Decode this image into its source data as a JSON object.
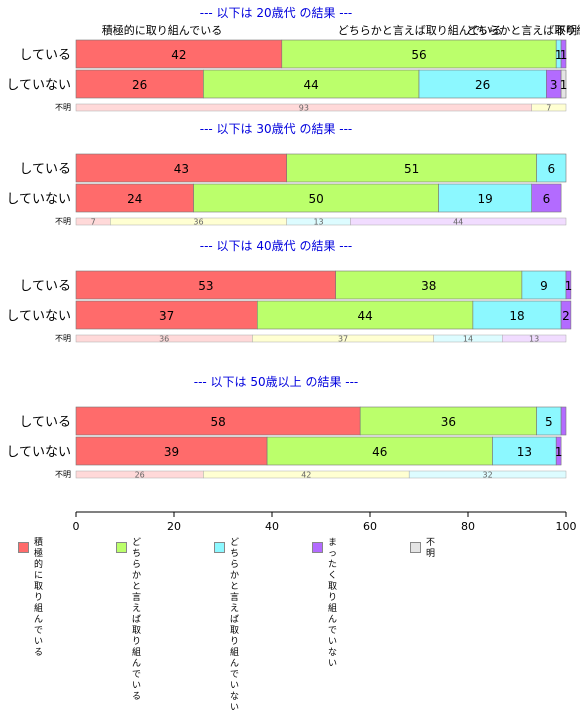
{
  "chart_data": {
    "type": "bar",
    "orientation": "horizontal-stacked-percent",
    "x_axis": {
      "min": 0,
      "max": 100,
      "ticks": [
        0,
        20,
        40,
        60,
        80,
        100
      ]
    },
    "legend_position": "bottom",
    "categories": [
      "積極的に\n取り組んでいる",
      "どちらかと言えば\n取り組んでいる",
      "どちらかと言えば\n取り組んでいない",
      "まったく\n取り組んでいない",
      "不明"
    ],
    "colors": [
      "#ff6b6b",
      "#bbff6b",
      "#8cf8ff",
      "#b36bff",
      "#e4e4e4"
    ],
    "unknown_colors": [
      "#ffd9d9",
      "#ffffd2",
      "#ddfcff",
      "#f1dcff",
      "#eeeeee"
    ],
    "top_labels": [
      "積極的に取り組んでいる",
      "どちらかと言えば取り組んでいる",
      "どちらかと言えば取り組んでいない",
      "不明"
    ],
    "groups": [
      {
        "title": "--- 以下は 20歳代 の結果 ---",
        "rows": [
          {
            "label": "している",
            "values": [
              42,
              56,
              1,
              1,
              0
            ],
            "labels": [
              "42",
              "56",
              "1",
              "1",
              ""
            ]
          },
          {
            "label": "していない",
            "values": [
              26,
              44,
              26,
              3,
              1
            ],
            "labels": [
              "26",
              "44",
              "26",
              "3",
              "1"
            ]
          }
        ],
        "unknown": {
          "label": "不明",
          "values": [
            93,
            7,
            0,
            0
          ],
          "labels": [
            "93",
            "7",
            "",
            ""
          ]
        }
      },
      {
        "title": "--- 以下は 30歳代 の結果 ---",
        "rows": [
          {
            "label": "している",
            "values": [
              43,
              51,
              6,
              0,
              0
            ],
            "labels": [
              "43",
              "51",
              "6",
              "",
              ""
            ]
          },
          {
            "label": "していない",
            "values": [
              24,
              50,
              19,
              6,
              0
            ],
            "labels": [
              "24",
              "50",
              "19",
              "6",
              ""
            ]
          }
        ],
        "unknown": {
          "label": "不明",
          "values": [
            7,
            36,
            13,
            44
          ],
          "labels": [
            "7",
            "36",
            "13",
            "44"
          ]
        }
      },
      {
        "title": "--- 以下は 40歳代 の結果 ---",
        "rows": [
          {
            "label": "している",
            "values": [
              53,
              38,
              9,
              1,
              0
            ],
            "labels": [
              "53",
              "38",
              "9",
              "1",
              ""
            ]
          },
          {
            "label": "していない",
            "values": [
              37,
              44,
              18,
              2,
              0
            ],
            "labels": [
              "37",
              "44",
              "18",
              "2",
              ""
            ]
          }
        ],
        "unknown": {
          "label": "不明",
          "values": [
            36,
            37,
            14,
            13
          ],
          "labels": [
            "36",
            "37",
            "14",
            "13"
          ]
        }
      },
      {
        "title": "--- 以下は 50歳以上 の結果 ---",
        "rows": [
          {
            "label": "している",
            "values": [
              58,
              36,
              5,
              1,
              0
            ],
            "labels": [
              "58",
              "36",
              "5",
              "",
              ""
            ]
          },
          {
            "label": "していない",
            "values": [
              39,
              46,
              13,
              1,
              0
            ],
            "labels": [
              "39",
              "46",
              "13",
              "1",
              ""
            ]
          }
        ],
        "unknown": {
          "label": "不明",
          "values": [
            26,
            42,
            32,
            0
          ],
          "labels": [
            "26",
            "42",
            "32",
            ""
          ]
        }
      }
    ]
  }
}
